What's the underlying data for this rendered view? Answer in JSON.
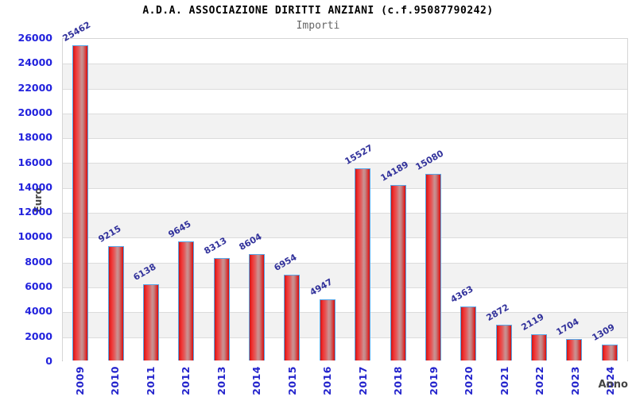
{
  "header": {
    "title": "A.D.A. ASSOCIAZIONE DIRITTI ANZIANI (c.f.95087790242)",
    "subtitle": "Importi"
  },
  "chart_data": {
    "type": "bar",
    "title": "A.D.A. ASSOCIAZIONE DIRITTI ANZIANI (c.f.95087790242)",
    "subtitle": "Importi",
    "xlabel": "Anno",
    "ylabel": "Euro",
    "categories": [
      "2009",
      "2010",
      "2011",
      "2012",
      "2013",
      "2014",
      "2015",
      "2016",
      "2017",
      "2018",
      "2019",
      "2020",
      "2021",
      "2022",
      "2023",
      "2024"
    ],
    "values": [
      25462,
      9215,
      6138,
      9645,
      8313,
      8604,
      6954,
      4947,
      15527,
      14189,
      15080,
      4363,
      2872,
      2119,
      1704,
      1309
    ],
    "ylim": [
      0,
      26000
    ],
    "ytick_step": 2000,
    "yticks": [
      0,
      2000,
      4000,
      6000,
      8000,
      10000,
      12000,
      14000,
      16000,
      18000,
      20000,
      22000,
      24000,
      26000
    ],
    "grid": "horizontal alternating bands",
    "legend": false,
    "colors": {
      "bar_red_bright": "#ee2b2b",
      "bar_red_dark": "#c41515",
      "bar_red_light": "#cb9292",
      "bar_border": "#58a7e8",
      "tick_label_blue": "#2222dd",
      "category_label_blue": "#2323cc",
      "value_label_navy": "#32329b",
      "axis_title_gray": "#444444",
      "subtitle_gray": "#666666",
      "band_gray": "#f2f2f2",
      "grid_line": "#dcdcdc"
    }
  }
}
